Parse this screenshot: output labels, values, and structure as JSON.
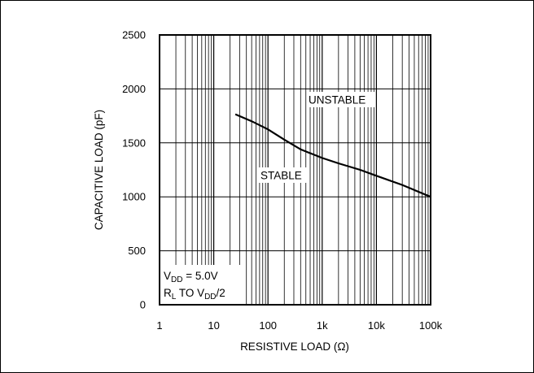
{
  "chart_data": {
    "type": "line",
    "x_scale": "log",
    "xlabel": "RESISTIVE LOAD (Ω)",
    "ylabel": "CAPACITIVE LOAD (pF)",
    "xlim": [
      1,
      100000
    ],
    "ylim": [
      0,
      2500
    ],
    "x_ticks": [
      {
        "value": 1,
        "label": "1"
      },
      {
        "value": 10,
        "label": "10"
      },
      {
        "value": 100,
        "label": "100"
      },
      {
        "value": 1000,
        "label": "1k"
      },
      {
        "value": 10000,
        "label": "10k"
      },
      {
        "value": 100000,
        "label": "100k"
      }
    ],
    "y_ticks": [
      {
        "value": 0,
        "label": "0"
      },
      {
        "value": 500,
        "label": "500"
      },
      {
        "value": 1000,
        "label": "1000"
      },
      {
        "value": 1500,
        "label": "1500"
      },
      {
        "value": 2000,
        "label": "2000"
      },
      {
        "value": 2500,
        "label": "2500"
      }
    ],
    "grid": true,
    "series": [
      {
        "x": [
          25,
          50,
          100,
          200,
          400,
          1000,
          2000,
          5000,
          10000,
          30000,
          100000
        ],
        "y": [
          1765,
          1700,
          1625,
          1530,
          1440,
          1360,
          1310,
          1250,
          1195,
          1110,
          1000
        ]
      }
    ],
    "annotations": {
      "unstable": "UNSTABLE",
      "stable": "STABLE",
      "cond1": {
        "main": "V",
        "sub": "DD",
        "rest": " = 5.0V"
      },
      "cond2": {
        "main": "R",
        "sub": "L",
        "mid": " TO V",
        "sub2": "DD",
        "rest": "/2"
      }
    }
  }
}
